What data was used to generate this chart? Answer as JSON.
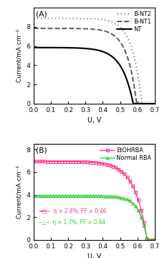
{
  "panel_A": {
    "label": "(A)",
    "curves": [
      {
        "name": "B-NT2",
        "linestyle": "dotted",
        "color": "#999999",
        "linewidth": 1.4,
        "Isc": 8.9,
        "Voc": 0.625,
        "FF": 0.72,
        "n": 18.0
      },
      {
        "name": "B-NT1",
        "linestyle": "dashed",
        "color": "#555555",
        "linewidth": 1.4,
        "Isc": 7.85,
        "Voc": 0.595,
        "FF": 0.72,
        "n": 18.0
      },
      {
        "name": "NT",
        "linestyle": "solid",
        "color": "#000000",
        "linewidth": 1.6,
        "Isc": 5.85,
        "Voc": 0.575,
        "FF": 0.68,
        "n": 15.0
      }
    ],
    "xlabel": "U, V",
    "ylabel": "Current/mA cm⁻²",
    "xlim": [
      0.0,
      0.7
    ],
    "ylim": [
      0.0,
      10.0
    ],
    "yticks": [
      0,
      2,
      4,
      6,
      8
    ],
    "xticks": [
      0.0,
      0.1,
      0.2,
      0.3,
      0.4,
      0.5,
      0.6,
      0.7
    ]
  },
  "panel_B": {
    "label": "(B)",
    "curves": [
      {
        "name": "EtOHRBA",
        "marker": "s",
        "color": "#ff3388",
        "linewidth": 1.0,
        "Isc": 6.95,
        "Voc": 0.655,
        "n": 14.0,
        "annotation": "η = 2.4%, FF = 0.46"
      },
      {
        "name": "Normal RBA",
        "marker": "^",
        "color": "#33cc33",
        "linewidth": 1.0,
        "Isc": 3.9,
        "Voc": 0.655,
        "n": 22.0,
        "annotation": "η = 1.7%, FF = 0.64"
      }
    ],
    "xlabel": "U, V",
    "ylabel": "Current/mA cm⁻²",
    "xlim": [
      0.0,
      0.7
    ],
    "ylim": [
      0.0,
      8.5
    ],
    "yticks": [
      0,
      2,
      4,
      6,
      8
    ],
    "xticks": [
      0.0,
      0.1,
      0.2,
      0.3,
      0.4,
      0.5,
      0.6,
      0.7
    ]
  }
}
